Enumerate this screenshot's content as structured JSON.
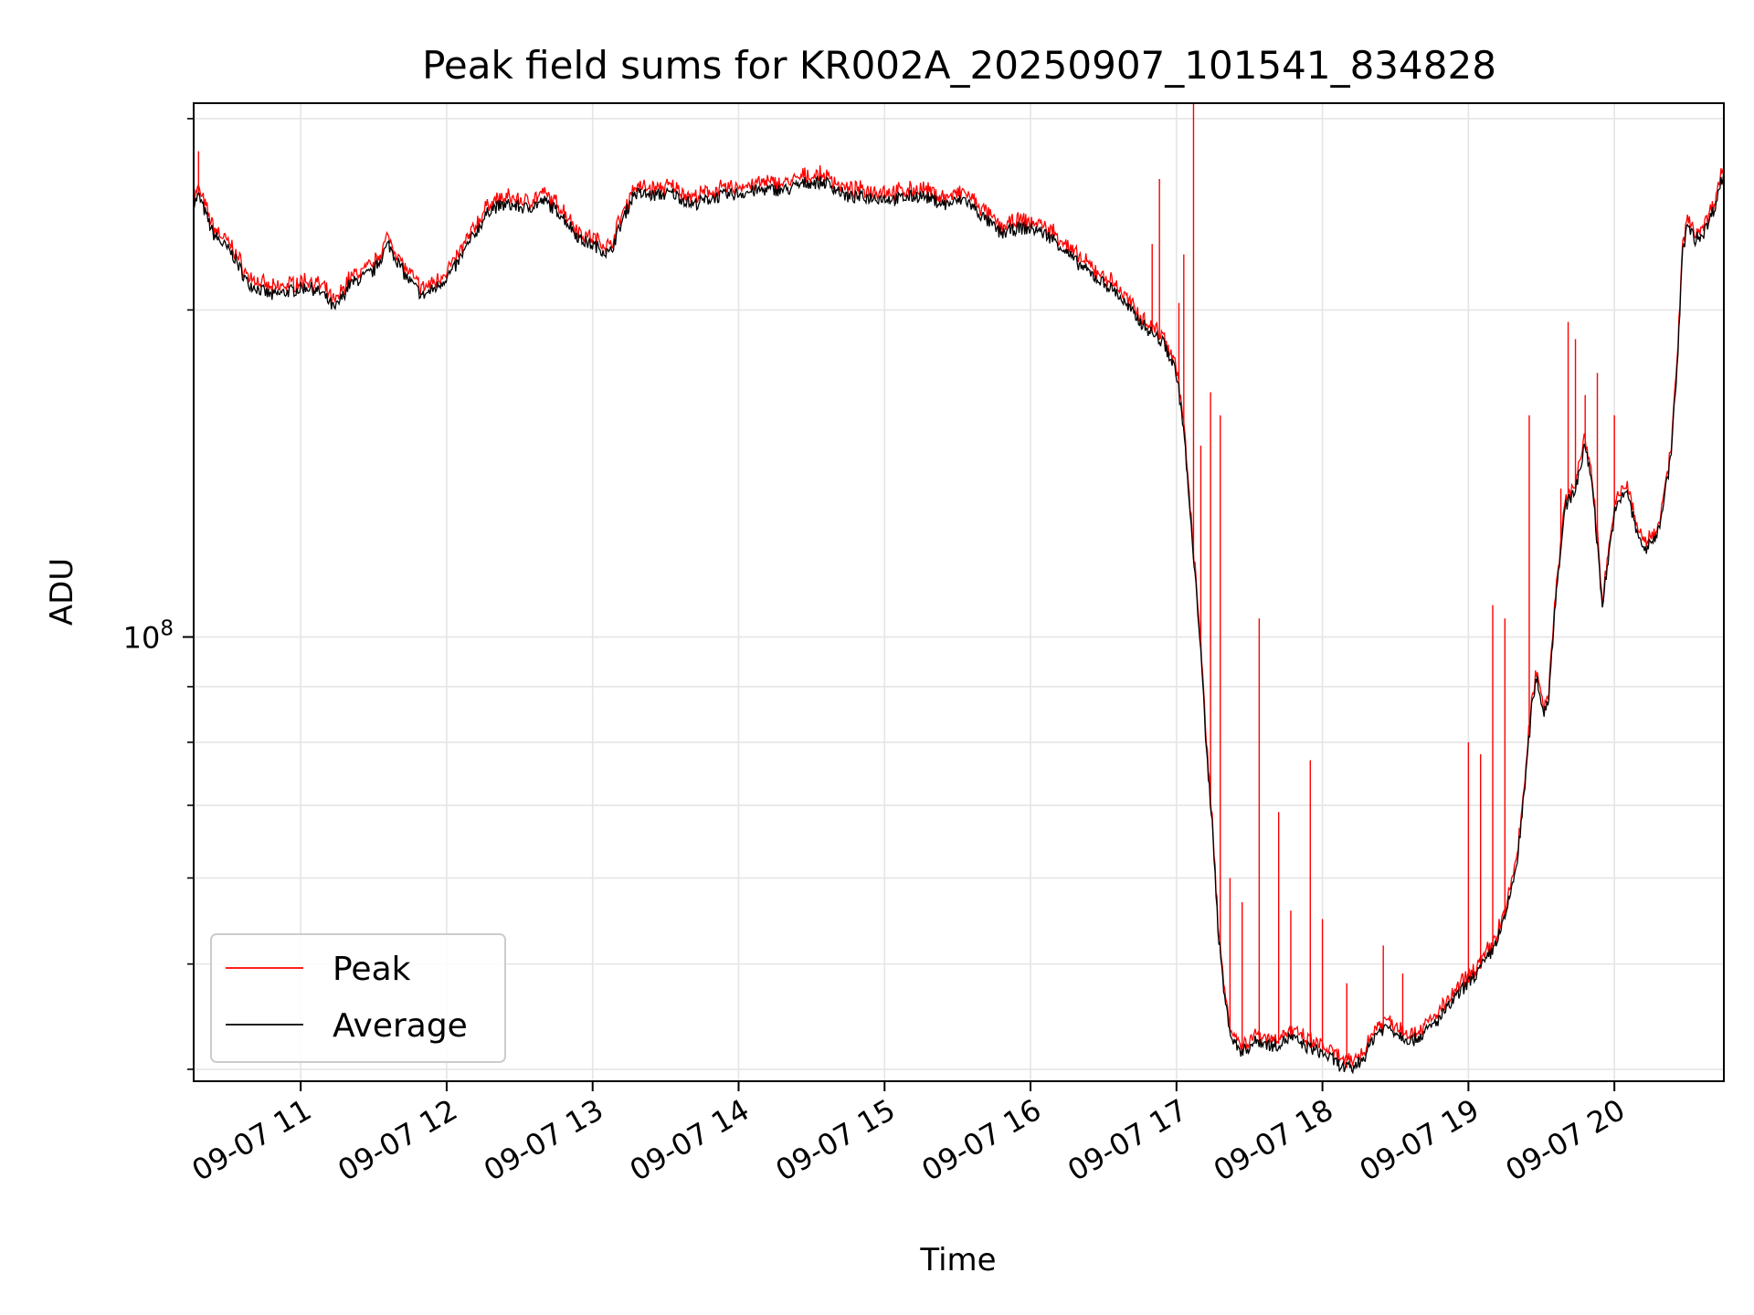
{
  "chart_data": {
    "type": "line",
    "title": "Peak field sums for KR002A_20250907_101541_834828",
    "xlabel": "Time",
    "ylabel": "ADU",
    "x_tick_labels": [
      "09-07 11",
      "09-07 12",
      "09-07 13",
      "09-07 14",
      "09-07 15",
      "09-07 16",
      "09-07 17",
      "09-07 18",
      "09-07 19",
      "09-07 20"
    ],
    "y_scale": "log",
    "y_tick_base": "10",
    "y_tick_exponent": "8",
    "grid": true,
    "legend_position": "lower-left",
    "x_range": [
      "2025-09-07 10:16",
      "2025-09-07 20:45"
    ],
    "ylim": [
      39000000,
      310000000
    ],
    "colors": {
      "peak": "#ff0000",
      "average": "#000000",
      "grid": "#e5e5e5"
    },
    "series": [
      {
        "name": "Average",
        "color": "#000000",
        "points": [
          [
            "2025-09-07 10:16",
            250000000
          ],
          [
            "2025-09-07 10:18",
            255000000
          ],
          [
            "2025-09-07 10:24",
            235000000
          ],
          [
            "2025-09-07 10:32",
            225000000
          ],
          [
            "2025-09-07 10:38",
            212000000
          ],
          [
            "2025-09-07 10:48",
            206000000
          ],
          [
            "2025-09-07 10:55",
            208000000
          ],
          [
            "2025-09-07 11:03",
            210000000
          ],
          [
            "2025-09-07 11:09",
            207000000
          ],
          [
            "2025-09-07 11:14",
            200000000
          ],
          [
            "2025-09-07 11:20",
            211000000
          ],
          [
            "2025-09-07 11:30",
            217000000
          ],
          [
            "2025-09-07 11:36",
            230000000
          ],
          [
            "2025-09-07 11:43",
            215000000
          ],
          [
            "2025-09-07 11:50",
            206000000
          ],
          [
            "2025-09-07 11:56",
            210000000
          ],
          [
            "2025-09-07 12:03",
            218000000
          ],
          [
            "2025-09-07 12:10",
            232000000
          ],
          [
            "2025-09-07 12:18",
            248000000
          ],
          [
            "2025-09-07 12:25",
            250000000
          ],
          [
            "2025-09-07 12:33",
            248000000
          ],
          [
            "2025-09-07 12:40",
            252000000
          ],
          [
            "2025-09-07 12:47",
            245000000
          ],
          [
            "2025-09-07 12:55",
            232000000
          ],
          [
            "2025-09-07 13:03",
            228000000
          ],
          [
            "2025-09-07 13:07",
            225000000
          ],
          [
            "2025-09-07 13:11",
            238000000
          ],
          [
            "2025-09-07 13:17",
            256000000
          ],
          [
            "2025-09-07 13:25",
            255000000
          ],
          [
            "2025-09-07 13:33",
            256000000
          ],
          [
            "2025-09-07 13:41",
            250000000
          ],
          [
            "2025-09-07 13:50",
            254000000
          ],
          [
            "2025-09-07 14:00",
            256000000
          ],
          [
            "2025-09-07 14:10",
            258000000
          ],
          [
            "2025-09-07 14:20",
            258000000
          ],
          [
            "2025-09-07 14:28",
            262000000
          ],
          [
            "2025-09-07 14:36",
            262000000
          ],
          [
            "2025-09-07 14:45",
            254000000
          ],
          [
            "2025-09-07 14:55",
            254000000
          ],
          [
            "2025-09-07 15:05",
            253000000
          ],
          [
            "2025-09-07 15:15",
            255000000
          ],
          [
            "2025-09-07 15:25",
            250000000
          ],
          [
            "2025-09-07 15:33",
            253000000
          ],
          [
            "2025-09-07 15:40",
            244000000
          ],
          [
            "2025-09-07 15:48",
            235000000
          ],
          [
            "2025-09-07 15:55",
            238000000
          ],
          [
            "2025-09-07 16:03",
            237000000
          ],
          [
            "2025-09-07 16:10",
            232000000
          ],
          [
            "2025-09-07 16:18",
            222000000
          ],
          [
            "2025-09-07 16:27",
            214000000
          ],
          [
            "2025-09-07 16:35",
            208000000
          ],
          [
            "2025-09-07 16:40",
            201000000
          ],
          [
            "2025-09-07 16:47",
            193000000
          ],
          [
            "2025-09-07 16:55",
            186000000
          ],
          [
            "2025-09-07 17:00",
            175000000
          ],
          [
            "2025-09-07 17:03",
            155000000
          ],
          [
            "2025-09-07 17:05",
            135000000
          ],
          [
            "2025-09-07 17:07",
            118000000
          ],
          [
            "2025-09-07 17:10",
            98000000
          ],
          [
            "2025-09-07 17:12",
            80000000
          ],
          [
            "2025-09-07 17:15",
            66000000
          ],
          [
            "2025-09-07 17:17",
            54000000
          ],
          [
            "2025-09-07 17:20",
            46000000
          ],
          [
            "2025-09-07 17:23",
            42500000
          ],
          [
            "2025-09-07 17:27",
            41500000
          ],
          [
            "2025-09-07 17:33",
            42500000
          ],
          [
            "2025-09-07 17:40",
            42000000
          ],
          [
            "2025-09-07 17:47",
            42800000
          ],
          [
            "2025-09-07 17:53",
            42000000
          ],
          [
            "2025-09-07 17:58",
            41600000
          ],
          [
            "2025-09-07 18:03",
            41000000
          ],
          [
            "2025-09-07 18:08",
            40200000
          ],
          [
            "2025-09-07 18:12",
            40000000
          ],
          [
            "2025-09-07 18:17",
            41000000
          ],
          [
            "2025-09-07 18:22",
            43200000
          ],
          [
            "2025-09-07 18:27",
            43800000
          ],
          [
            "2025-09-07 18:32",
            43000000
          ],
          [
            "2025-09-07 18:37",
            42500000
          ],
          [
            "2025-09-07 18:42",
            43200000
          ],
          [
            "2025-09-07 18:48",
            44500000
          ],
          [
            "2025-09-07 18:53",
            46000000
          ],
          [
            "2025-09-07 18:58",
            47500000
          ],
          [
            "2025-09-07 19:05",
            49500000
          ],
          [
            "2025-09-07 19:10",
            51500000
          ],
          [
            "2025-09-07 19:15",
            55000000
          ],
          [
            "2025-09-07 19:20",
            62000000
          ],
          [
            "2025-09-07 19:23",
            72000000
          ],
          [
            "2025-09-07 19:26",
            86000000
          ],
          [
            "2025-09-07 19:28",
            92000000
          ],
          [
            "2025-09-07 19:31",
            85000000
          ],
          [
            "2025-09-07 19:33",
            88000000
          ],
          [
            "2025-09-07 19:36",
            110000000
          ],
          [
            "2025-09-07 19:40",
            132000000
          ],
          [
            "2025-09-07 19:44",
            137000000
          ],
          [
            "2025-09-07 19:48",
            150000000
          ],
          [
            "2025-09-07 19:51",
            138000000
          ],
          [
            "2025-09-07 19:55",
            107000000
          ],
          [
            "2025-09-07 20:00",
            130000000
          ],
          [
            "2025-09-07 20:05",
            137000000
          ],
          [
            "2025-09-07 20:09",
            125000000
          ],
          [
            "2025-09-07 20:13",
            120000000
          ],
          [
            "2025-09-07 20:18",
            125000000
          ],
          [
            "2025-09-07 20:23",
            145000000
          ],
          [
            "2025-09-07 20:26",
            180000000
          ],
          [
            "2025-09-07 20:28",
            225000000
          ],
          [
            "2025-09-07 20:30",
            240000000
          ],
          [
            "2025-09-07 20:33",
            232000000
          ],
          [
            "2025-09-07 20:37",
            236000000
          ],
          [
            "2025-09-07 20:41",
            248000000
          ],
          [
            "2025-09-07 20:45",
            268000000
          ]
        ]
      },
      {
        "name": "Peak",
        "color": "#ff0000",
        "points": [
          [
            "2025-09-07 10:18",
            280000000
          ],
          [
            "2025-09-07 16:50",
            230000000
          ],
          [
            "2025-09-07 16:53",
            264000000
          ],
          [
            "2025-09-07 17:01",
            203000000
          ],
          [
            "2025-09-07 17:03",
            225000000
          ],
          [
            "2025-09-07 17:07",
            310000000
          ],
          [
            "2025-09-07 17:10",
            150000000
          ],
          [
            "2025-09-07 17:14",
            168000000
          ],
          [
            "2025-09-07 17:18",
            160000000
          ],
          [
            "2025-09-07 17:22",
            60000000
          ],
          [
            "2025-09-07 17:27",
            57000000
          ],
          [
            "2025-09-07 17:34",
            104000000
          ],
          [
            "2025-09-07 17:42",
            69000000
          ],
          [
            "2025-09-07 17:47",
            56000000
          ],
          [
            "2025-09-07 17:55",
            77000000
          ],
          [
            "2025-09-07 18:00",
            55000000
          ],
          [
            "2025-09-07 18:10",
            48000000
          ],
          [
            "2025-09-07 18:25",
            52000000
          ],
          [
            "2025-09-07 18:33",
            49000000
          ],
          [
            "2025-09-07 19:00",
            80000000
          ],
          [
            "2025-09-07 19:05",
            78000000
          ],
          [
            "2025-09-07 19:10",
            107000000
          ],
          [
            "2025-09-07 19:15",
            104000000
          ],
          [
            "2025-09-07 19:25",
            160000000
          ],
          [
            "2025-09-07 19:38",
            137000000
          ],
          [
            "2025-09-07 19:41",
            195000000
          ],
          [
            "2025-09-07 19:44",
            188000000
          ],
          [
            "2025-09-07 19:48",
            167000000
          ],
          [
            "2025-09-07 19:53",
            175000000
          ],
          [
            "2025-09-07 20:00",
            160000000
          ]
        ]
      }
    ]
  }
}
